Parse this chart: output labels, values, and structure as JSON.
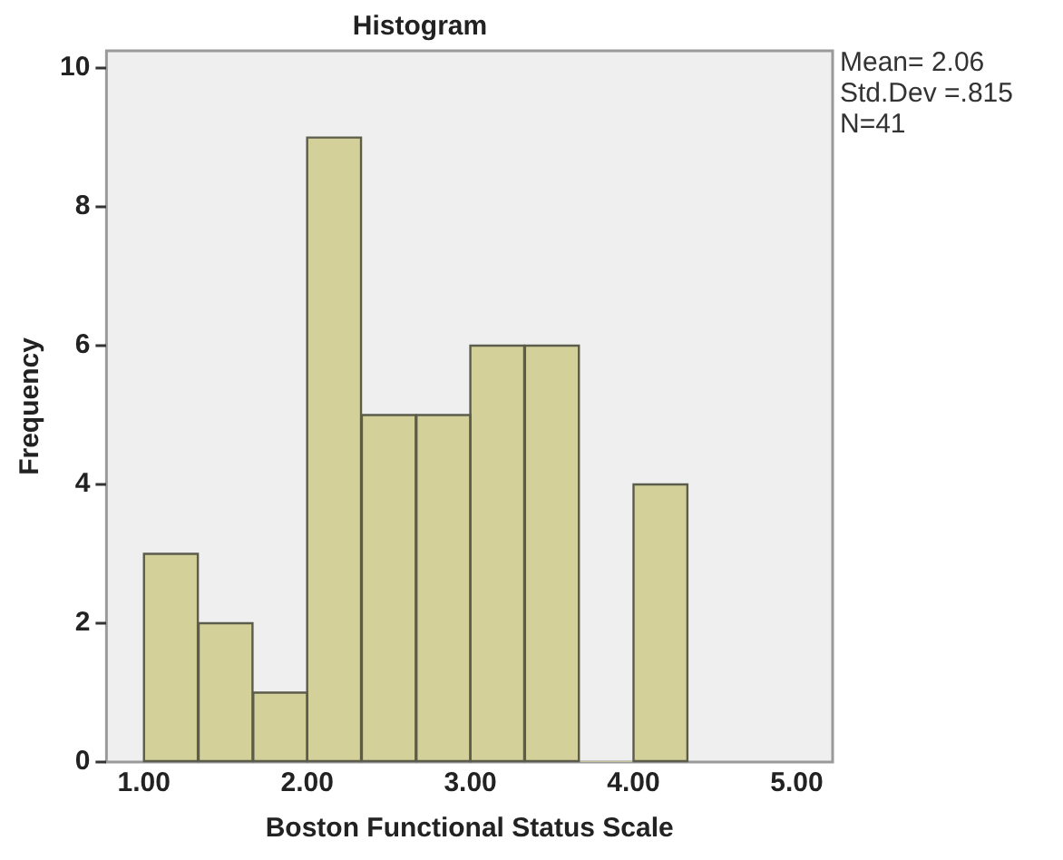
{
  "chart_data": {
    "type": "histogram",
    "title": "Histogram",
    "xlabel": "Boston Functional Status Scale",
    "ylabel": "Frequency",
    "bins": [
      1,
      1.33,
      1.67,
      2,
      2.33,
      2.67,
      3,
      3.33,
      3.67,
      4,
      4.33
    ],
    "values": [
      3,
      2,
      1,
      9,
      5,
      5,
      6,
      6,
      0,
      4
    ],
    "color": "#d4d09a",
    "xlim": [
      0.77,
      5.22
    ],
    "ylim": [
      0,
      10.25
    ],
    "xticks": [
      {
        "value": 1,
        "label": "1.00"
      },
      {
        "value": 2,
        "label": "2.00"
      },
      {
        "value": 3,
        "label": "3.00"
      },
      {
        "value": 4,
        "label": "4.00"
      },
      {
        "value": 5,
        "label": "5.00"
      }
    ],
    "yticks": [
      0,
      2,
      4,
      6,
      8,
      10
    ],
    "grid": false,
    "legend": false,
    "annotations": [
      "Mean= 2.06",
      "Std.Dev =.815",
      "N=41"
    ]
  }
}
